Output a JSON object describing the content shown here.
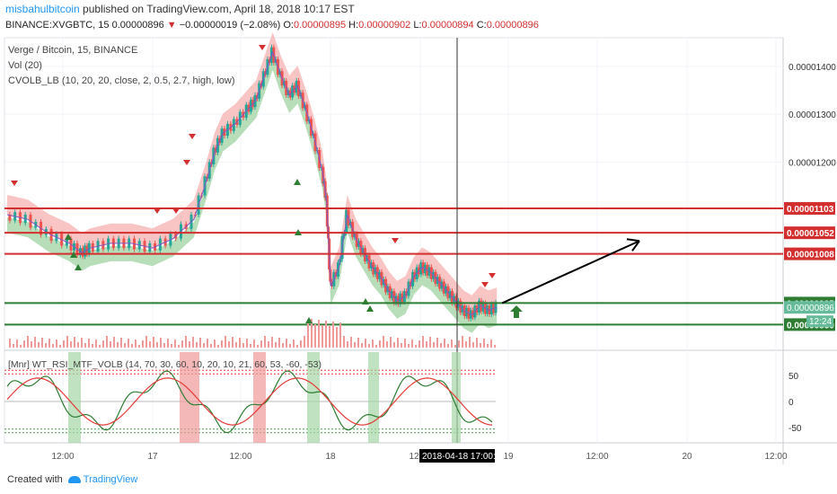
{
  "header": {
    "author": "misbahulbitcoin",
    "published_text": " published on TradingView.com, April 18, 2018 10:17 EST",
    "symbol_line": "BINANCE:XVGBTC, 15",
    "last_price": "0.00000896",
    "change_text": "−0.00000019 (−2.08%)",
    "ohlc": [
      {
        "label": "O:",
        "value": "0.00000895"
      },
      {
        "label": "H:",
        "value": "0.00000902"
      },
      {
        "label": "L:",
        "value": "0.00000894"
      },
      {
        "label": "C:",
        "value": "0.00000896"
      }
    ]
  },
  "legend": {
    "line1": "Verge / Bitcoin, 15, BINANCE",
    "line2": "Vol (20)",
    "line3": "CVOLB_LB (10, 20, 20, close, 2, 0.5, 2.7, high, low)",
    "osc": "[Mnr] WT_RSI_MTF_VOLB (14, 70, 30, 60, 10, 20, 10, 21, 60, 53, -60, -53)"
  },
  "footer": {
    "created_with": "Created with",
    "brand": "TradingView"
  },
  "colors": {
    "red_level": "#d32f2f",
    "green_level": "#2e7d32",
    "up_candle": "#26a69a",
    "down_candle": "#ef5350",
    "band_upper": "#f7b0b0",
    "band_lower": "#a5d6a7"
  },
  "chart_data": [
    {
      "type": "candlestick",
      "title": "Verge / Bitcoin, 15, BINANCE",
      "ylim": [
        8.1e-06,
        1.46e-05
      ],
      "y_ticks": [
        "0.00001400",
        "0.00001300",
        "0.00001200"
      ],
      "x_ticks": [
        "12:00",
        "17",
        "12:00",
        "18",
        "12:00",
        "19",
        "12:00",
        "20",
        "12:00"
      ],
      "crosshair_label": "2018-04-18 17:00:00",
      "current_price_label": "0.00000896",
      "countdown_label": "12:24",
      "horizontal_levels": [
        {
          "value": 1.103e-05,
          "label": "0.00001103",
          "color": "red"
        },
        {
          "value": 1.052e-05,
          "label": "0.00001052",
          "color": "red"
        },
        {
          "value": 1.008e-05,
          "label": "0.00001008",
          "color": "red"
        },
        {
          "value": 9.05e-06,
          "label": "0.00000905",
          "color": "green"
        },
        {
          "value": 8.6e-06,
          "label": "0.00000860",
          "color": "green"
        }
      ],
      "price_path": [
        [
          0,
          1.09e-05
        ],
        [
          5,
          1.08e-05
        ],
        [
          10,
          1.05e-05
        ],
        [
          15,
          1.03e-05
        ],
        [
          18,
          1.01e-05
        ],
        [
          20,
          1.02e-05
        ],
        [
          25,
          1.03e-05
        ],
        [
          30,
          1.03e-05
        ],
        [
          35,
          1.02e-05
        ],
        [
          40,
          1.04e-05
        ],
        [
          45,
          1.08e-05
        ],
        [
          48,
          1.16e-05
        ],
        [
          50,
          1.22e-05
        ],
        [
          52,
          1.26e-05
        ],
        [
          55,
          1.28e-05
        ],
        [
          58,
          1.31e-05
        ],
        [
          60,
          1.33e-05
        ],
        [
          62,
          1.38e-05
        ],
        [
          64,
          1.43e-05
        ],
        [
          66,
          1.38e-05
        ],
        [
          68,
          1.34e-05
        ],
        [
          70,
          1.36e-05
        ],
        [
          72,
          1.31e-05
        ],
        [
          74,
          1.25e-05
        ],
        [
          76,
          1.18e-05
        ],
        [
          77,
          1.12e-05
        ],
        [
          78,
          9.4e-06
        ],
        [
          80,
          9.8e-06
        ],
        [
          82,
          1.09e-05
        ],
        [
          84,
          1.04e-05
        ],
        [
          86,
          1.01e-05
        ],
        [
          88,
          9.8e-06
        ],
        [
          90,
          9.6e-06
        ],
        [
          92,
          9.3e-06
        ],
        [
          94,
          9.1e-06
        ],
        [
          96,
          9.2e-06
        ],
        [
          98,
          9.6e-06
        ],
        [
          100,
          9.8e-06
        ],
        [
          102,
          9.7e-06
        ],
        [
          104,
          9.5e-06
        ],
        [
          106,
          9.3e-06
        ],
        [
          108,
          9.1e-06
        ],
        [
          110,
          8.9e-06
        ],
        [
          112,
          8.8e-06
        ],
        [
          114,
          9e-06
        ],
        [
          116,
          8.9e-06
        ],
        [
          118,
          8.96e-06
        ]
      ],
      "annotation": "arrow from last price pointing up toward 0.00001052"
    },
    {
      "type": "line",
      "title": "[Mnr] WT_RSI_MTF_VOLB (14, 70, 30, 60, 10, 20, 10, 21, 60, 53, -60, -53)",
      "ylim": [
        -80,
        80
      ],
      "y_ticks": [
        "50",
        "0",
        "-50"
      ],
      "levels": [
        60,
        53,
        0,
        -53,
        -60
      ]
    }
  ]
}
